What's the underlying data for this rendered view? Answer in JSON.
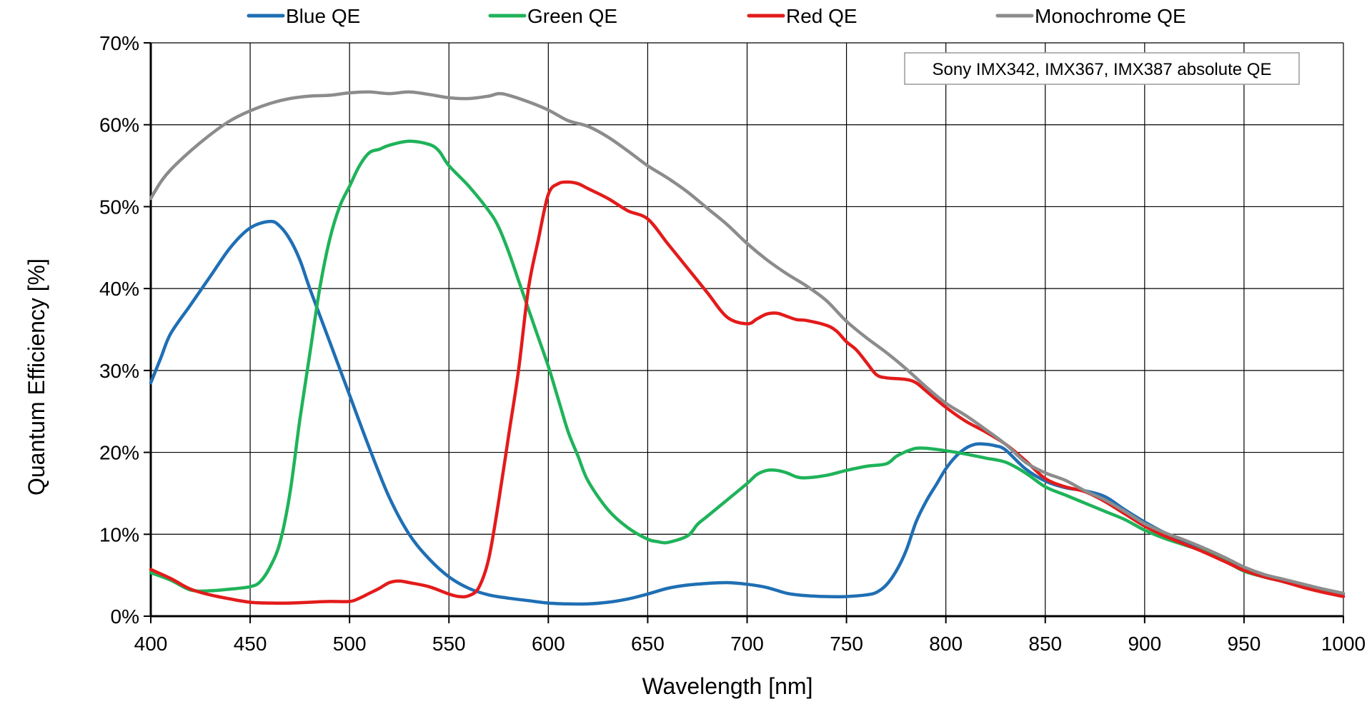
{
  "chart_data": {
    "type": "line",
    "title": "",
    "annotation": "Sony IMX342, IMX367, IMX387 absolute QE",
    "xlabel": "Wavelength [nm]",
    "ylabel": "Quantum Efficiency [%]",
    "xlim": [
      400,
      1000
    ],
    "ylim": [
      0,
      70
    ],
    "x_ticks": [
      "400",
      "450",
      "500",
      "550",
      "600",
      "650",
      "700",
      "750",
      "800",
      "850",
      "900",
      "950",
      "1000"
    ],
    "y_ticks": [
      "0%",
      "10%",
      "20%",
      "30%",
      "40%",
      "50%",
      "60%",
      "70%"
    ],
    "grid": true,
    "legend_position": "top",
    "series": [
      {
        "name": "Blue QE",
        "color": "#1f6fb4",
        "points": [
          [
            400,
            28.5
          ],
          [
            405,
            31.5
          ],
          [
            410,
            34.5
          ],
          [
            420,
            38
          ],
          [
            430,
            41.5
          ],
          [
            440,
            45
          ],
          [
            450,
            47.4
          ],
          [
            460,
            48.2
          ],
          [
            465,
            47.6
          ],
          [
            470,
            46
          ],
          [
            475,
            43.5
          ],
          [
            480,
            40
          ],
          [
            490,
            33.5
          ],
          [
            500,
            27
          ],
          [
            510,
            20.5
          ],
          [
            520,
            14.5
          ],
          [
            530,
            10
          ],
          [
            540,
            7
          ],
          [
            550,
            4.8
          ],
          [
            560,
            3.4
          ],
          [
            570,
            2.6
          ],
          [
            580,
            2.2
          ],
          [
            590,
            1.9
          ],
          [
            600,
            1.6
          ],
          [
            610,
            1.5
          ],
          [
            620,
            1.5
          ],
          [
            630,
            1.7
          ],
          [
            640,
            2.1
          ],
          [
            650,
            2.7
          ],
          [
            660,
            3.4
          ],
          [
            670,
            3.8
          ],
          [
            680,
            4
          ],
          [
            690,
            4.1
          ],
          [
            700,
            3.9
          ],
          [
            710,
            3.5
          ],
          [
            720,
            2.8
          ],
          [
            730,
            2.5
          ],
          [
            740,
            2.4
          ],
          [
            750,
            2.4
          ],
          [
            760,
            2.6
          ],
          [
            765,
            2.9
          ],
          [
            770,
            3.8
          ],
          [
            775,
            5.5
          ],
          [
            780,
            8
          ],
          [
            785,
            11.5
          ],
          [
            790,
            14
          ],
          [
            795,
            16
          ],
          [
            800,
            18
          ],
          [
            805,
            19.5
          ],
          [
            810,
            20.5
          ],
          [
            815,
            21
          ],
          [
            820,
            21
          ],
          [
            825,
            20.8
          ],
          [
            830,
            20.3
          ],
          [
            840,
            18
          ],
          [
            850,
            16.5
          ],
          [
            860,
            15.7
          ],
          [
            870,
            15.3
          ],
          [
            880,
            14.6
          ],
          [
            890,
            13
          ],
          [
            900,
            11.5
          ],
          [
            910,
            10.2
          ],
          [
            920,
            9.2
          ],
          [
            930,
            8.2
          ],
          [
            940,
            7
          ],
          [
            950,
            5.8
          ],
          [
            960,
            5
          ],
          [
            970,
            4.4
          ],
          [
            980,
            3.8
          ],
          [
            990,
            3.2
          ],
          [
            1000,
            2.7
          ]
        ]
      },
      {
        "name": "Green QE",
        "color": "#1fb35a",
        "points": [
          [
            400,
            5.3
          ],
          [
            410,
            4.4
          ],
          [
            420,
            3.2
          ],
          [
            430,
            3.1
          ],
          [
            440,
            3.3
          ],
          [
            450,
            3.6
          ],
          [
            455,
            4.2
          ],
          [
            460,
            6
          ],
          [
            465,
            9
          ],
          [
            470,
            15
          ],
          [
            475,
            24
          ],
          [
            480,
            32
          ],
          [
            485,
            40
          ],
          [
            490,
            46
          ],
          [
            495,
            50
          ],
          [
            500,
            52.5
          ],
          [
            505,
            55
          ],
          [
            510,
            56.6
          ],
          [
            515,
            57
          ],
          [
            520,
            57.5
          ],
          [
            530,
            58
          ],
          [
            540,
            57.6
          ],
          [
            545,
            56.8
          ],
          [
            550,
            55
          ],
          [
            560,
            52.5
          ],
          [
            570,
            49.5
          ],
          [
            575,
            47.5
          ],
          [
            580,
            44.5
          ],
          [
            585,
            41
          ],
          [
            590,
            37.5
          ],
          [
            595,
            34
          ],
          [
            600,
            30.5
          ],
          [
            605,
            26.5
          ],
          [
            610,
            22.5
          ],
          [
            615,
            19.5
          ],
          [
            620,
            16.5
          ],
          [
            630,
            13
          ],
          [
            640,
            10.8
          ],
          [
            650,
            9.4
          ],
          [
            655,
            9.1
          ],
          [
            660,
            9
          ],
          [
            670,
            9.8
          ],
          [
            675,
            11.2
          ],
          [
            680,
            12.2
          ],
          [
            690,
            14.2
          ],
          [
            700,
            16.2
          ],
          [
            705,
            17.3
          ],
          [
            710,
            17.8
          ],
          [
            715,
            17.8
          ],
          [
            720,
            17.5
          ],
          [
            725,
            17
          ],
          [
            730,
            16.9
          ],
          [
            740,
            17.2
          ],
          [
            750,
            17.8
          ],
          [
            760,
            18.3
          ],
          [
            770,
            18.6
          ],
          [
            775,
            19.5
          ],
          [
            780,
            20.1
          ],
          [
            785,
            20.5
          ],
          [
            790,
            20.5
          ],
          [
            800,
            20.2
          ],
          [
            810,
            19.8
          ],
          [
            820,
            19.3
          ],
          [
            830,
            18.8
          ],
          [
            840,
            17.5
          ],
          [
            850,
            15.8
          ],
          [
            860,
            14.8
          ],
          [
            870,
            13.8
          ],
          [
            880,
            12.8
          ],
          [
            890,
            11.8
          ],
          [
            900,
            10.5
          ],
          [
            910,
            9.5
          ],
          [
            920,
            8.7
          ],
          [
            930,
            7.9
          ],
          [
            940,
            6.8
          ],
          [
            950,
            5.5
          ],
          [
            960,
            4.8
          ],
          [
            970,
            4.2
          ],
          [
            980,
            3.6
          ],
          [
            990,
            3
          ],
          [
            1000,
            2.4
          ]
        ]
      },
      {
        "name": "Red QE",
        "color": "#e31b1b",
        "points": [
          [
            400,
            5.7
          ],
          [
            410,
            4.6
          ],
          [
            420,
            3.3
          ],
          [
            430,
            2.6
          ],
          [
            440,
            2.1
          ],
          [
            450,
            1.7
          ],
          [
            460,
            1.6
          ],
          [
            470,
            1.6
          ],
          [
            480,
            1.7
          ],
          [
            490,
            1.8
          ],
          [
            500,
            1.8
          ],
          [
            505,
            2.2
          ],
          [
            510,
            2.8
          ],
          [
            515,
            3.4
          ],
          [
            520,
            4.1
          ],
          [
            525,
            4.3
          ],
          [
            530,
            4.1
          ],
          [
            540,
            3.6
          ],
          [
            550,
            2.7
          ],
          [
            555,
            2.4
          ],
          [
            560,
            2.5
          ],
          [
            565,
            3.5
          ],
          [
            570,
            7
          ],
          [
            575,
            14
          ],
          [
            580,
            22
          ],
          [
            585,
            30
          ],
          [
            590,
            40
          ],
          [
            595,
            46
          ],
          [
            600,
            51.5
          ],
          [
            605,
            52.8
          ],
          [
            610,
            53
          ],
          [
            615,
            52.8
          ],
          [
            620,
            52.2
          ],
          [
            630,
            51
          ],
          [
            640,
            49.5
          ],
          [
            650,
            48.5
          ],
          [
            660,
            45.5
          ],
          [
            670,
            42.5
          ],
          [
            680,
            39.5
          ],
          [
            690,
            36.5
          ],
          [
            700,
            35.7
          ],
          [
            705,
            36.3
          ],
          [
            710,
            36.9
          ],
          [
            715,
            37
          ],
          [
            720,
            36.6
          ],
          [
            725,
            36.2
          ],
          [
            730,
            36.1
          ],
          [
            740,
            35.5
          ],
          [
            745,
            34.8
          ],
          [
            750,
            33.5
          ],
          [
            755,
            32.5
          ],
          [
            760,
            31
          ],
          [
            765,
            29.5
          ],
          [
            770,
            29.1
          ],
          [
            780,
            28.9
          ],
          [
            785,
            28.5
          ],
          [
            790,
            27.5
          ],
          [
            800,
            25.5
          ],
          [
            810,
            23.8
          ],
          [
            820,
            22.5
          ],
          [
            830,
            21
          ],
          [
            840,
            19
          ],
          [
            850,
            16.8
          ],
          [
            860,
            15.8
          ],
          [
            870,
            15.2
          ],
          [
            880,
            14
          ],
          [
            890,
            12.5
          ],
          [
            900,
            11
          ],
          [
            910,
            9.8
          ],
          [
            920,
            8.8
          ],
          [
            930,
            7.8
          ],
          [
            940,
            6.7
          ],
          [
            950,
            5.6
          ],
          [
            960,
            4.8
          ],
          [
            970,
            4.2
          ],
          [
            980,
            3.5
          ],
          [
            990,
            2.9
          ],
          [
            1000,
            2.4
          ]
        ]
      },
      {
        "name": "Monochrome QE",
        "color": "#8c8c8c",
        "points": [
          [
            400,
            51
          ],
          [
            405,
            53
          ],
          [
            410,
            54.5
          ],
          [
            420,
            56.8
          ],
          [
            430,
            58.8
          ],
          [
            440,
            60.5
          ],
          [
            450,
            61.7
          ],
          [
            460,
            62.6
          ],
          [
            470,
            63.2
          ],
          [
            480,
            63.5
          ],
          [
            490,
            63.6
          ],
          [
            500,
            63.9
          ],
          [
            510,
            64
          ],
          [
            520,
            63.8
          ],
          [
            530,
            64
          ],
          [
            540,
            63.7
          ],
          [
            550,
            63.3
          ],
          [
            560,
            63.2
          ],
          [
            570,
            63.5
          ],
          [
            575,
            63.8
          ],
          [
            580,
            63.6
          ],
          [
            590,
            62.8
          ],
          [
            600,
            61.8
          ],
          [
            610,
            60.5
          ],
          [
            620,
            59.8
          ],
          [
            630,
            58.5
          ],
          [
            640,
            56.8
          ],
          [
            650,
            55
          ],
          [
            660,
            53.5
          ],
          [
            670,
            51.8
          ],
          [
            680,
            49.8
          ],
          [
            690,
            47.8
          ],
          [
            700,
            45.5
          ],
          [
            710,
            43.5
          ],
          [
            720,
            41.8
          ],
          [
            730,
            40.3
          ],
          [
            740,
            38.5
          ],
          [
            750,
            36
          ],
          [
            760,
            34
          ],
          [
            770,
            32.2
          ],
          [
            780,
            30.2
          ],
          [
            790,
            28
          ],
          [
            800,
            26
          ],
          [
            810,
            24.5
          ],
          [
            820,
            22.8
          ],
          [
            830,
            21
          ],
          [
            840,
            18.8
          ],
          [
            850,
            17.5
          ],
          [
            860,
            16.6
          ],
          [
            870,
            15.3
          ],
          [
            880,
            14.2
          ],
          [
            890,
            12.8
          ],
          [
            900,
            11.3
          ],
          [
            910,
            10.2
          ],
          [
            920,
            9.3
          ],
          [
            930,
            8.3
          ],
          [
            940,
            7.2
          ],
          [
            950,
            6
          ],
          [
            960,
            5.1
          ],
          [
            970,
            4.5
          ],
          [
            980,
            3.9
          ],
          [
            990,
            3.3
          ],
          [
            1000,
            2.8
          ]
        ]
      }
    ]
  }
}
